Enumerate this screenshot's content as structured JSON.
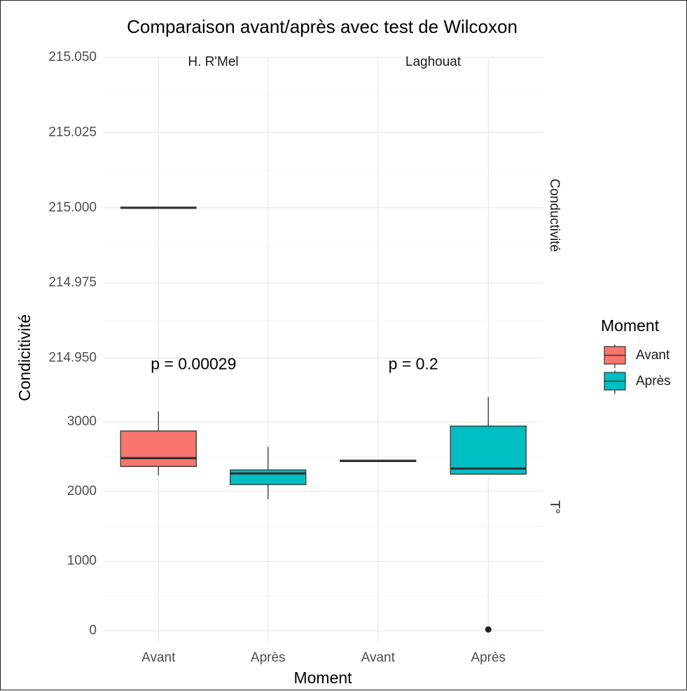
{
  "chart_data": {
    "type": "box",
    "title": "Comparaison avant/après avec test de Wilcoxon",
    "xlabel": "Moment",
    "ylabel": "Condicitivité",
    "categories": [
      "Avant",
      "Après"
    ],
    "colors": {
      "Avant": "#F8766D",
      "Après": "#00BFC4"
    },
    "legend": {
      "title": "Moment",
      "position": "right",
      "entries": [
        "Avant",
        "Après"
      ]
    },
    "facets": {
      "columns": [
        "H. R'Mel",
        "Laghouat"
      ],
      "rows": [
        {
          "label": "Conductivité",
          "ylim": [
            214.945,
            215.05
          ],
          "ticks": [
            "214.950",
            "214.975",
            "215.000",
            "215.025",
            "215.050"
          ],
          "tick_values": [
            214.95,
            214.975,
            215.0,
            215.025,
            215.05
          ],
          "panels": {
            "H. R'Mel": {
              "boxes": [
                {
                  "group": "Avant",
                  "min": 215.0,
                  "q1": 215.0,
                  "median": 215.0,
                  "q3": 215.0,
                  "max": 215.0,
                  "outliers": []
                }
              ],
              "p_label": ""
            },
            "Laghouat": {
              "boxes": [],
              "p_label": ""
            }
          }
        },
        {
          "label": "T°",
          "ylim": [
            -150,
            3700
          ],
          "ticks": [
            "0",
            "1000",
            "2000",
            "3000"
          ],
          "tick_values": [
            0,
            1000,
            2000,
            3000
          ],
          "panels": {
            "H. R'Mel": {
              "boxes": [
                {
                  "group": "Avant",
                  "min": 2230,
                  "q1": 2360,
                  "median": 2480,
                  "q3": 2870,
                  "max": 3150,
                  "outliers": []
                },
                {
                  "group": "Après",
                  "min": 1890,
                  "q1": 2100,
                  "median": 2260,
                  "q3": 2310,
                  "max": 2640,
                  "outliers": []
                }
              ],
              "p_label": "p = 0.00029"
            },
            "Laghouat": {
              "boxes": [
                {
                  "group": "Avant",
                  "min": 2430,
                  "q1": 2430,
                  "median": 2440,
                  "q3": 2450,
                  "max": 2450,
                  "outliers": []
                },
                {
                  "group": "Après",
                  "min": 2250,
                  "q1": 2250,
                  "median": 2330,
                  "q3": 2940,
                  "max": 3360,
                  "outliers": [
                    20
                  ]
                }
              ],
              "p_label": "p = 0.2"
            }
          }
        }
      ]
    }
  }
}
